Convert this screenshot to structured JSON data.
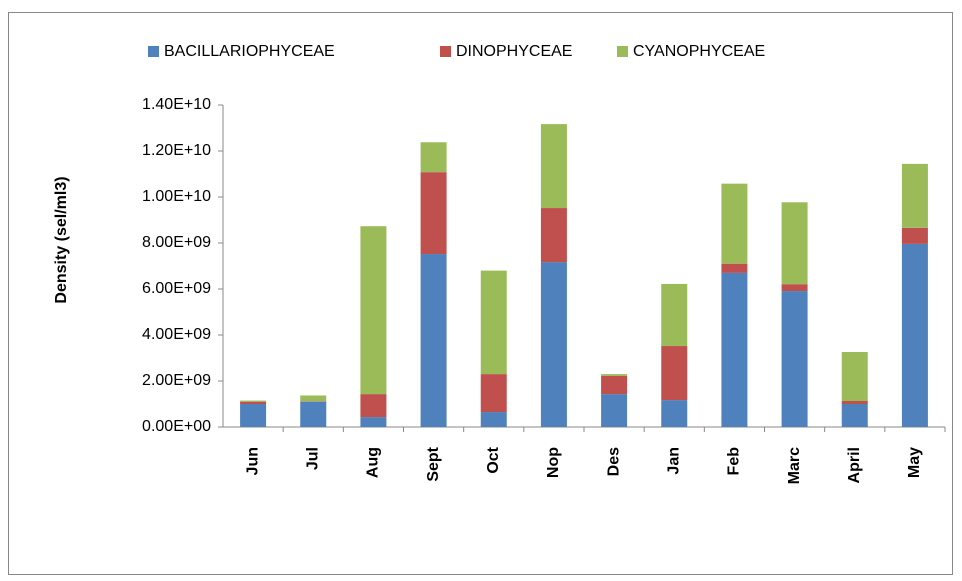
{
  "chart_data": {
    "type": "stacked_bar",
    "y_label": "Density (sel/ml3)",
    "categories": [
      "Jun",
      "Jul",
      "Aug",
      "Sept",
      "Oct",
      "Nop",
      "Des",
      "Jan",
      "Feb",
      "Marc",
      "April",
      "May"
    ],
    "series": [
      {
        "name": "BACILLARIOPHYCEAE",
        "color": "#4f81bd",
        "values": [
          1000000000,
          1100000000,
          430000000,
          7520000000,
          650000000,
          7170000000,
          1430000000,
          1170000000,
          6700000000,
          5910000000,
          1000000000,
          7960000000
        ]
      },
      {
        "name": "DINOPHYCEAE",
        "color": "#c0504d",
        "values": [
          100000000,
          20000000,
          1000000000,
          3560000000,
          1650000000,
          2350000000,
          790000000,
          2350000000,
          400000000,
          300000000,
          130000000,
          700000000
        ]
      },
      {
        "name": "CYANOPHYCEAE",
        "color": "#9bbb59",
        "values": [
          50000000,
          250000000,
          7300000000,
          1300000000,
          4500000000,
          3650000000,
          80000000,
          2700000000,
          3480000000,
          3560000000,
          2130000000,
          2780000000
        ]
      }
    ],
    "ylim": [
      0,
      14000000000
    ],
    "yticks": [
      {
        "value": 0,
        "label": "0.00E+00"
      },
      {
        "value": 2000000000,
        "label": "2.00E+09"
      },
      {
        "value": 4000000000,
        "label": "4.00E+09"
      },
      {
        "value": 6000000000,
        "label": "6.00E+09"
      },
      {
        "value": 8000000000,
        "label": "8.00E+09"
      },
      {
        "value": 10000000000,
        "label": "1.00E+10"
      },
      {
        "value": 12000000000,
        "label": "1.20E+10"
      },
      {
        "value": 14000000000,
        "label": "1.40E+10"
      }
    ],
    "legend": "top"
  }
}
